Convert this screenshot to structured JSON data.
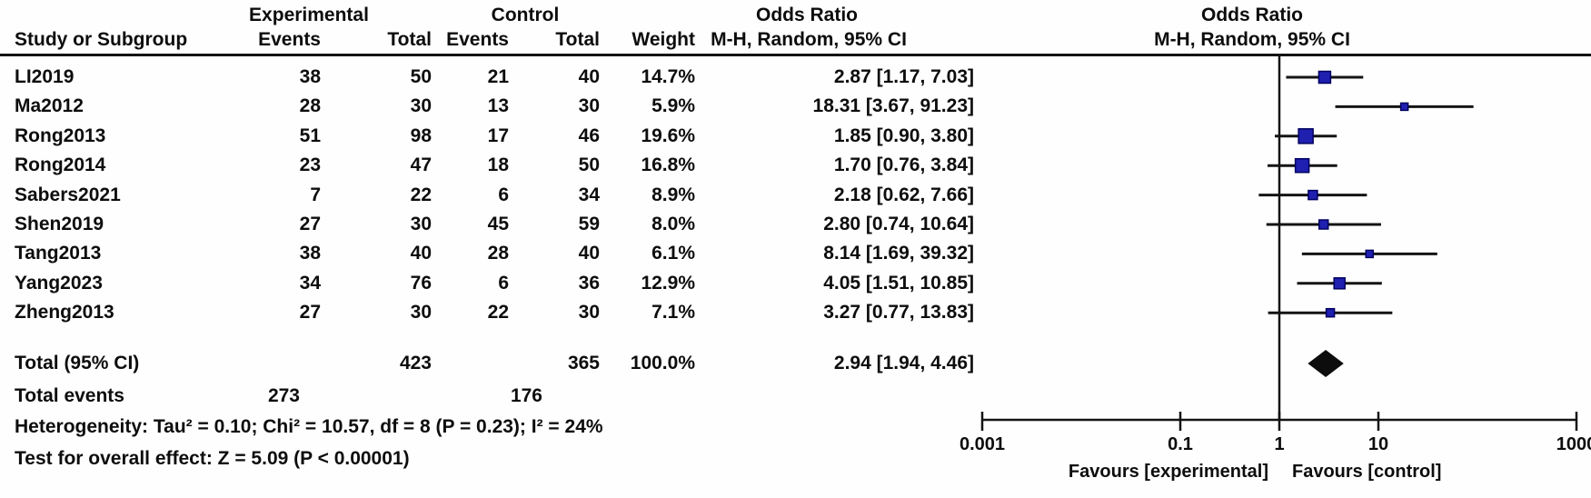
{
  "table": {
    "group1_header": "Experimental",
    "group2_header": "Control",
    "or_header": "Odds Ratio",
    "or_subheader": "M-H, Random, 95% CI",
    "plot_header": "Odds Ratio",
    "plot_subheader": "M-H, Random, 95% CI",
    "columns": {
      "study": "Study or Subgroup",
      "events1": "Events",
      "total1": "Total",
      "events2": "Events",
      "total2": "Total",
      "weight": "Weight"
    },
    "rows": [
      {
        "study": "LI2019",
        "events1": "38",
        "total1": "50",
        "events2": "21",
        "total2": "40",
        "weight": "14.7%",
        "or_ci": "2.87 [1.17, 7.03]"
      },
      {
        "study": "Ma2012",
        "events1": "28",
        "total1": "30",
        "events2": "13",
        "total2": "30",
        "weight": "5.9%",
        "or_ci": "18.31 [3.67, 91.23]"
      },
      {
        "study": "Rong2013",
        "events1": "51",
        "total1": "98",
        "events2": "17",
        "total2": "46",
        "weight": "19.6%",
        "or_ci": "1.85 [0.90, 3.80]"
      },
      {
        "study": "Rong2014",
        "events1": "23",
        "total1": "47",
        "events2": "18",
        "total2": "50",
        "weight": "16.8%",
        "or_ci": "1.70 [0.76, 3.84]"
      },
      {
        "study": "Sabers2021",
        "events1": "7",
        "total1": "22",
        "events2": "6",
        "total2": "34",
        "weight": "8.9%",
        "or_ci": "2.18 [0.62, 7.66]"
      },
      {
        "study": "Shen2019",
        "events1": "27",
        "total1": "30",
        "events2": "45",
        "total2": "59",
        "weight": "8.0%",
        "or_ci": "2.80 [0.74, 10.64]"
      },
      {
        "study": "Tang2013",
        "events1": "38",
        "total1": "40",
        "events2": "28",
        "total2": "40",
        "weight": "6.1%",
        "or_ci": "8.14 [1.69, 39.32]"
      },
      {
        "study": "Yang2023",
        "events1": "34",
        "total1": "76",
        "events2": "6",
        "total2": "36",
        "weight": "12.9%",
        "or_ci": "4.05 [1.51, 10.85]"
      },
      {
        "study": "Zheng2013",
        "events1": "27",
        "total1": "30",
        "events2": "22",
        "total2": "30",
        "weight": "7.1%",
        "or_ci": "3.27 [0.77, 13.83]"
      }
    ],
    "total_row": {
      "label": "Total (95% CI)",
      "total1": "423",
      "total2": "365",
      "weight": "100.0%",
      "or_ci": "2.94 [1.94, 4.46]"
    },
    "total_events": {
      "label": "Total events",
      "events1": "273",
      "events2": "176"
    },
    "heterogeneity": "Heterogeneity: Tau² = 0.10; Chi² = 10.57, df = 8 (P = 0.23); I² = 24%",
    "overall_effect": "Test for overall effect: Z = 5.09 (P < 0.00001)"
  },
  "chart_data": {
    "type": "scatter",
    "subtype": "forest-plot",
    "x_scale": "log10",
    "x_range": [
      0.001,
      1000
    ],
    "axis_ticks": [
      0.001,
      0.1,
      1,
      10,
      1000
    ],
    "axis_tick_labels": [
      "0.001",
      "0.1",
      "1",
      "10",
      "1000"
    ],
    "null_line_value": 1,
    "favours_left": "Favours [experimental]",
    "favours_right": "Favours [control]",
    "marker_color": "#1f1fb0",
    "marker_edge_color": "#000060",
    "line_color": "#141414",
    "studies": [
      {
        "name": "LI2019",
        "or": 2.87,
        "ci_low": 1.17,
        "ci_high": 7.03,
        "weight": 14.7
      },
      {
        "name": "Ma2012",
        "or": 18.31,
        "ci_low": 3.67,
        "ci_high": 91.23,
        "weight": 5.9
      },
      {
        "name": "Rong2013",
        "or": 1.85,
        "ci_low": 0.9,
        "ci_high": 3.8,
        "weight": 19.6
      },
      {
        "name": "Rong2014",
        "or": 1.7,
        "ci_low": 0.76,
        "ci_high": 3.84,
        "weight": 16.8
      },
      {
        "name": "Sabers2021",
        "or": 2.18,
        "ci_low": 0.62,
        "ci_high": 7.66,
        "weight": 8.9
      },
      {
        "name": "Shen2019",
        "or": 2.8,
        "ci_low": 0.74,
        "ci_high": 10.64,
        "weight": 8.0
      },
      {
        "name": "Tang2013",
        "or": 8.14,
        "ci_low": 1.69,
        "ci_high": 39.32,
        "weight": 6.1
      },
      {
        "name": "Yang2023",
        "or": 4.05,
        "ci_low": 1.51,
        "ci_high": 10.85,
        "weight": 12.9
      },
      {
        "name": "Zheng2013",
        "or": 3.27,
        "ci_low": 0.77,
        "ci_high": 13.83,
        "weight": 7.1
      }
    ],
    "total": {
      "or": 2.94,
      "ci_low": 1.94,
      "ci_high": 4.46
    }
  }
}
